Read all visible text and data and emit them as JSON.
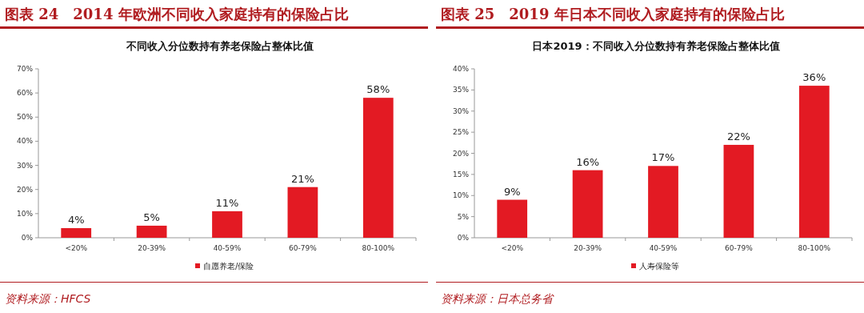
{
  "chart_data": [
    {
      "type": "bar",
      "title": "图表 24　2014 年欧洲不同收入家庭持有的保险占比",
      "subtitle": "不同收入分位数持有养老保险占整体比值",
      "categories": [
        "<20%",
        "20-39%",
        "40-59%",
        "60-79%",
        "80-100%"
      ],
      "series": [
        {
          "name": "自愿养老/保险",
          "color": "#e31a23",
          "values": [
            4,
            5,
            11,
            21,
            58
          ],
          "value_labels": [
            "4%",
            "5%",
            "11%",
            "21%",
            "58%"
          ]
        }
      ],
      "ylim": [
        0,
        70
      ],
      "yticks": [
        {
          "value": 0,
          "label": "0%"
        },
        {
          "value": 10,
          "label": "10%"
        },
        {
          "value": 20,
          "label": "20%"
        },
        {
          "value": 30,
          "label": "30%"
        },
        {
          "value": 40,
          "label": "40%"
        },
        {
          "value": 50,
          "label": "50%"
        },
        {
          "value": 60,
          "label": "60%"
        },
        {
          "value": 70,
          "label": "70%"
        }
      ],
      "legend": "bottom",
      "annotations": [
        "资料来源：HFCS"
      ]
    },
    {
      "type": "bar",
      "title": "图表 25　2019 年日本不同收入家庭持有的保险占比",
      "subtitle": "日本2019：不同收入分位数持有养老保险占整体比值",
      "categories": [
        "<20%",
        "20-39%",
        "40-59%",
        "60-79%",
        "80-100%"
      ],
      "series": [
        {
          "name": "人寿保险等",
          "color": "#e31a23",
          "values": [
            9,
            16,
            17,
            22,
            36
          ],
          "value_labels": [
            "9%",
            "16%",
            "17%",
            "22%",
            "36%"
          ]
        }
      ],
      "ylim": [
        0,
        40
      ],
      "yticks": [
        {
          "value": 0,
          "label": "0%"
        },
        {
          "value": 5,
          "label": "5%"
        },
        {
          "value": 10,
          "label": "10%"
        },
        {
          "value": 15,
          "label": "15%"
        },
        {
          "value": 20,
          "label": "20%"
        },
        {
          "value": 25,
          "label": "25%"
        },
        {
          "value": 30,
          "label": "30%"
        },
        {
          "value": 35,
          "label": "35%"
        },
        {
          "value": 40,
          "label": "40%"
        }
      ],
      "legend": "bottom",
      "annotations": [
        "资料来源：日本总务省"
      ]
    }
  ]
}
